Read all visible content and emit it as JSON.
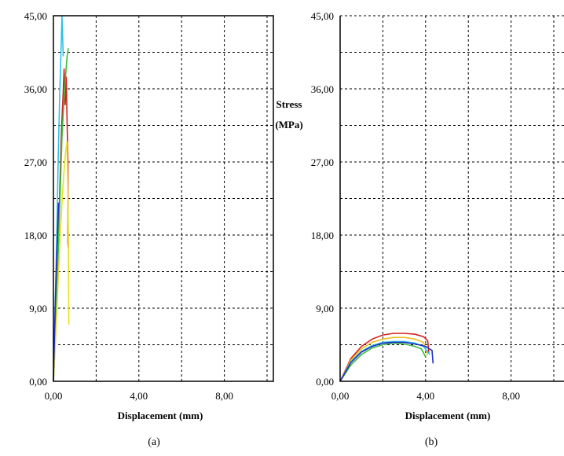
{
  "chart_data": [
    {
      "panel": "a",
      "type": "line",
      "caption": "(a)",
      "xlabel": "Displacement (mm)",
      "ylabel": "",
      "xlim": [
        0,
        10.2
      ],
      "ylim": [
        0,
        45
      ],
      "x_ticks": [
        0,
        4,
        8
      ],
      "x_tick_labels": [
        "0,00",
        "4,00",
        "8,00"
      ],
      "y_ticks": [
        0,
        9,
        18,
        27,
        36,
        45
      ],
      "y_tick_labels": [
        "0,00",
        "9,00",
        "18,00",
        "27,00",
        "36,00",
        "45,00"
      ],
      "grid": true,
      "series": [
        {
          "name": "cyan",
          "color": "#29c3e6",
          "x": [
            0,
            0.07,
            0.15,
            0.22,
            0.3,
            0.36,
            0.4,
            0.46
          ],
          "y": [
            0,
            8,
            17,
            27,
            36,
            41,
            45,
            40
          ]
        },
        {
          "name": "red",
          "color": "#d42020",
          "x": [
            0,
            0.1,
            0.2,
            0.3,
            0.38,
            0.45,
            0.5,
            0.55,
            0.6,
            0.64,
            0.68,
            0.68,
            0.7
          ],
          "y": [
            0,
            6,
            14,
            24,
            31,
            35,
            38.5,
            34,
            37.5,
            32,
            27,
            17,
            16.5
          ]
        },
        {
          "name": "green",
          "color": "#3dbb3d",
          "x": [
            0,
            0.1,
            0.2,
            0.3,
            0.4,
            0.5,
            0.58,
            0.64,
            0.7
          ],
          "y": [
            0,
            6,
            14,
            22,
            30,
            35,
            38,
            40,
            41
          ]
        },
        {
          "name": "yellow",
          "color": "#e8e020",
          "x": [
            0,
            0.1,
            0.2,
            0.3,
            0.4,
            0.5,
            0.58,
            0.64,
            0.7,
            0.72
          ],
          "y": [
            0,
            5,
            11,
            17,
            22,
            26,
            28.5,
            29.5,
            18,
            7
          ]
        },
        {
          "name": "blue",
          "color": "#2030c8",
          "x": [
            0,
            0.08,
            0.16,
            0.24
          ],
          "y": [
            0,
            9,
            16,
            22
          ]
        }
      ]
    },
    {
      "panel": "b",
      "type": "line",
      "caption": "(b)",
      "xlabel": "Displacement (mm)",
      "ylabel": "Stress (MPa)",
      "ylabel_line1": "Stress",
      "ylabel_line2": "(MPa)",
      "xlim": [
        0,
        10.2
      ],
      "ylim": [
        0,
        45
      ],
      "x_ticks": [
        0,
        4,
        8
      ],
      "x_tick_labels": [
        "0,00",
        "4,00",
        "8,00"
      ],
      "y_ticks": [
        0,
        9,
        18,
        27,
        36,
        45
      ],
      "y_tick_labels": [
        "0,00",
        "9,00",
        "18,00",
        "27,00",
        "36,00",
        "45,00"
      ],
      "grid": true,
      "series": [
        {
          "name": "red",
          "color": "#d42020",
          "x": [
            0,
            0.5,
            1.0,
            1.5,
            2.0,
            2.5,
            3.0,
            3.5,
            3.9,
            4.1,
            4.15
          ],
          "y": [
            0,
            2.8,
            4.3,
            5.2,
            5.7,
            5.9,
            5.9,
            5.8,
            5.5,
            5.0,
            3.5
          ]
        },
        {
          "name": "yellow",
          "color": "#e8c020",
          "x": [
            0,
            0.5,
            1.0,
            1.5,
            2.0,
            2.5,
            3.0,
            3.5,
            3.9,
            4.1
          ],
          "y": [
            0,
            2.6,
            4.0,
            4.8,
            5.2,
            5.4,
            5.4,
            5.2,
            4.8,
            3.2
          ]
        },
        {
          "name": "cyan",
          "color": "#29c3e6",
          "x": [
            0,
            0.5,
            1.0,
            1.5,
            2.0,
            2.5,
            3.0,
            3.5,
            3.9,
            4.2
          ],
          "y": [
            0,
            2.4,
            3.7,
            4.4,
            4.8,
            4.9,
            4.9,
            4.7,
            4.3,
            3.3
          ]
        },
        {
          "name": "green",
          "color": "#3dbb3d",
          "x": [
            0,
            0.5,
            1.0,
            1.5,
            2.0,
            2.5,
            3.0,
            3.5,
            3.8,
            4.0
          ],
          "y": [
            0,
            2.0,
            3.3,
            4.1,
            4.5,
            4.7,
            4.6,
            4.3,
            4.0,
            3.0
          ]
        },
        {
          "name": "blue",
          "color": "#2030c8",
          "x": [
            0,
            0.5,
            1.0,
            1.5,
            2.0,
            2.5,
            3.0,
            3.5,
            4.0,
            4.3,
            4.35
          ],
          "y": [
            0,
            2.3,
            3.6,
            4.3,
            4.7,
            4.8,
            4.8,
            4.6,
            4.3,
            3.8,
            2.2
          ]
        }
      ]
    }
  ]
}
